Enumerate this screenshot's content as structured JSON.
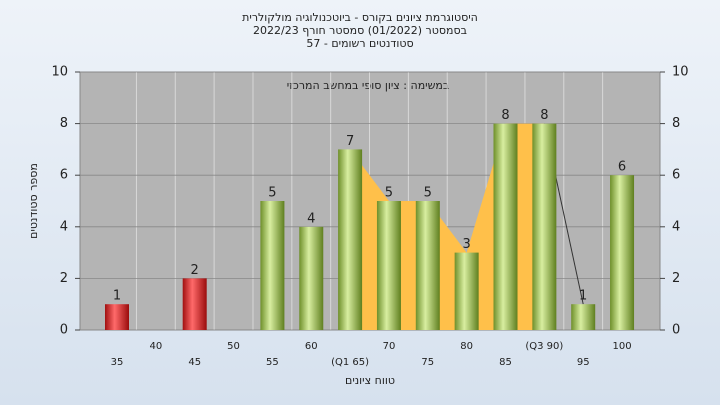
{
  "chart_data": {
    "type": "bar",
    "title": "היסטוגרמת ציונים בקורס - ביוטכנולוגיה מולקולרית",
    "subtitle": "בסמסטר  (01/2022)  סמסטר חורף 2022/23",
    "subtitle2": "סטודנטים רשומים - 57",
    "annotation": "במשימה : ציון סופי במחשב המרכזי",
    "y_label": "מספר סטודנטים",
    "x_label": "טווח ציונים",
    "categories": [
      "35",
      "40",
      "45",
      "50",
      "55",
      "60",
      "(Q1 65)",
      "70",
      "75",
      "80",
      "85",
      "(Q3 90)",
      "95",
      "100"
    ],
    "values": [
      1,
      0,
      2,
      0,
      5,
      4,
      7,
      5,
      5,
      3,
      8,
      8,
      1,
      6
    ],
    "colors": [
      "red",
      "green",
      "red",
      "green",
      "green",
      "green",
      "green",
      "green",
      "green",
      "green",
      "green",
      "green",
      "green",
      "green"
    ],
    "ylim": [
      0,
      10
    ],
    "yticks": [
      0,
      2,
      4,
      6,
      8,
      10
    ],
    "grid": true
  }
}
